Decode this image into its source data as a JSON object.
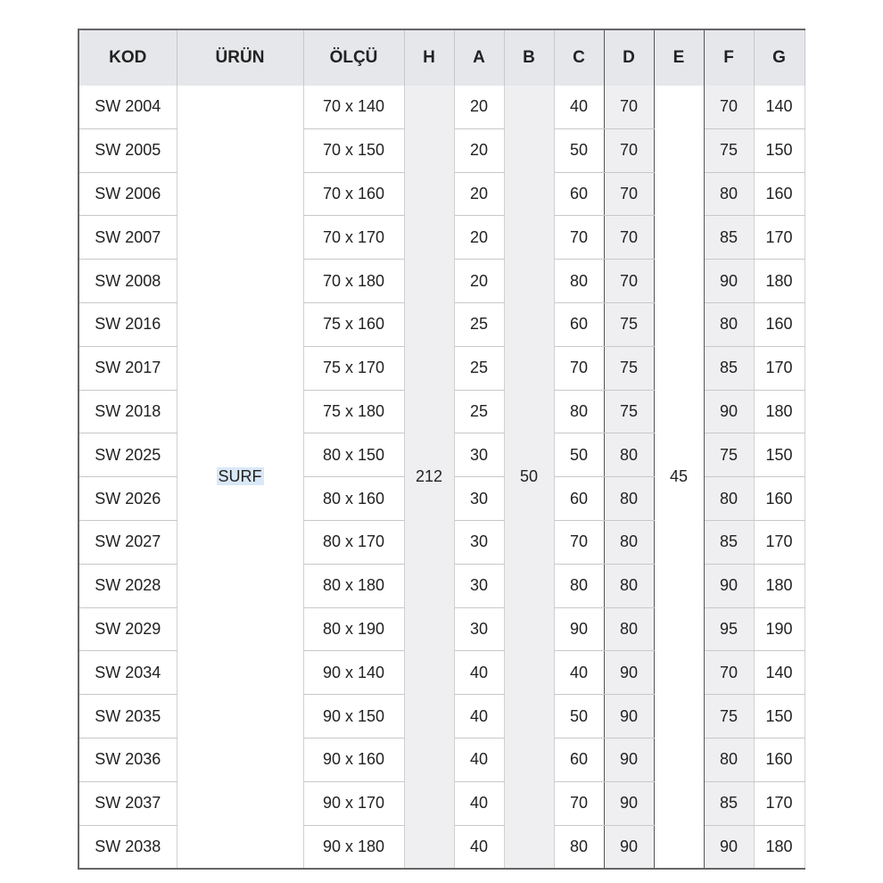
{
  "headers": [
    "KOD",
    "ÜRÜN",
    "ÖLÇÜ",
    "H",
    "A",
    "B",
    "C",
    "D",
    "E",
    "F",
    "G"
  ],
  "product": "SURF",
  "H": "212",
  "B": "50",
  "E": "45",
  "rows": [
    [
      "SW 2004",
      "70 x 140",
      "20",
      "40",
      "70",
      "70",
      "140"
    ],
    [
      "SW 2005",
      "70 x 150",
      "20",
      "50",
      "70",
      "75",
      "150"
    ],
    [
      "SW 2006",
      "70 x 160",
      "20",
      "60",
      "70",
      "80",
      "160"
    ],
    [
      "SW 2007",
      "70 x 170",
      "20",
      "70",
      "70",
      "85",
      "170"
    ],
    [
      "SW 2008",
      "70 x 180",
      "20",
      "80",
      "70",
      "90",
      "180"
    ],
    [
      "SW 2016",
      "75 x 160",
      "25",
      "60",
      "75",
      "80",
      "160"
    ],
    [
      "SW 2017",
      "75 x 170",
      "25",
      "70",
      "75",
      "85",
      "170"
    ],
    [
      "SW 2018",
      "75 x 180",
      "25",
      "80",
      "75",
      "90",
      "180"
    ],
    [
      "SW 2025",
      "80 x 150",
      "30",
      "50",
      "80",
      "75",
      "150"
    ],
    [
      "SW 2026",
      "80 x 160",
      "30",
      "60",
      "80",
      "80",
      "160"
    ],
    [
      "SW 2027",
      "80 x 170",
      "30",
      "70",
      "80",
      "85",
      "170"
    ],
    [
      "SW 2028",
      "80 x 180",
      "30",
      "80",
      "80",
      "90",
      "180"
    ],
    [
      "SW 2029",
      "80 x 190",
      "30",
      "90",
      "80",
      "95",
      "190"
    ],
    [
      "SW 2034",
      "90 x 140",
      "40",
      "40",
      "90",
      "70",
      "140"
    ],
    [
      "SW 2035",
      "90 x 150",
      "40",
      "50",
      "90",
      "75",
      "150"
    ],
    [
      "SW 2036",
      "90 x 160",
      "40",
      "60",
      "90",
      "80",
      "160"
    ],
    [
      "SW 2037",
      "90  x 170",
      "40",
      "70",
      "90",
      "85",
      "170"
    ],
    [
      "SW 2038",
      "90 x 180",
      "40",
      "80",
      "90",
      "90",
      "180"
    ]
  ]
}
